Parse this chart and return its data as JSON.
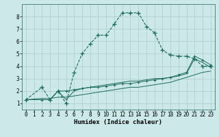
{
  "xlabel": "Humidex (Indice chaleur)",
  "bg_color": "#cce8e8",
  "grid_color": "#aacccc",
  "line_color": "#1a6b5a",
  "xlim": [
    -0.5,
    23.5
  ],
  "ylim": [
    0.5,
    9.0
  ],
  "xticks": [
    0,
    1,
    2,
    3,
    4,
    5,
    6,
    7,
    8,
    9,
    10,
    11,
    12,
    13,
    14,
    15,
    16,
    17,
    18,
    19,
    20,
    21,
    22,
    23
  ],
  "yticks": [
    1,
    2,
    3,
    4,
    5,
    6,
    7,
    8
  ],
  "line1_x": [
    0,
    2,
    3,
    4,
    5,
    6,
    7,
    8,
    9,
    10,
    11,
    12,
    13,
    14,
    15,
    16,
    17,
    18,
    19,
    20,
    21,
    22,
    23
  ],
  "line1_y": [
    1.3,
    2.3,
    1.3,
    2.0,
    1.0,
    3.5,
    5.0,
    5.8,
    6.5,
    6.5,
    7.4,
    8.3,
    8.3,
    8.3,
    7.2,
    6.7,
    5.3,
    4.9,
    4.8,
    4.8,
    4.6,
    4.0,
    4.0
  ],
  "line2_x": [
    0,
    2,
    3,
    4,
    5,
    6,
    7,
    8,
    9,
    10,
    11,
    12,
    13,
    14,
    15,
    16,
    17,
    18,
    19,
    20,
    21,
    22,
    23
  ],
  "line2_y": [
    1.3,
    1.3,
    1.3,
    2.0,
    2.0,
    2.1,
    2.2,
    2.3,
    2.3,
    2.4,
    2.5,
    2.6,
    2.6,
    2.7,
    2.8,
    2.9,
    3.0,
    3.1,
    3.3,
    3.5,
    4.8,
    4.5,
    4.1
  ],
  "line3_x": [
    0,
    2,
    3,
    4,
    5,
    6,
    7,
    8,
    9,
    10,
    11,
    12,
    13,
    14,
    15,
    16,
    17,
    18,
    19,
    20,
    21,
    22,
    23
  ],
  "line3_y": [
    1.3,
    1.3,
    1.3,
    2.0,
    1.3,
    2.0,
    2.2,
    2.3,
    2.4,
    2.5,
    2.6,
    2.7,
    2.8,
    2.8,
    2.9,
    3.0,
    3.0,
    3.1,
    3.2,
    3.4,
    4.6,
    4.3,
    3.9
  ],
  "line4_x": [
    0,
    2,
    3,
    4,
    5,
    6,
    7,
    8,
    9,
    10,
    11,
    12,
    13,
    14,
    15,
    16,
    17,
    18,
    19,
    20,
    21,
    22,
    23
  ],
  "line4_y": [
    1.3,
    1.4,
    1.4,
    1.5,
    1.5,
    1.6,
    1.7,
    1.8,
    1.9,
    2.0,
    2.1,
    2.2,
    2.3,
    2.3,
    2.4,
    2.5,
    2.6,
    2.7,
    2.9,
    3.1,
    3.3,
    3.5,
    3.6
  ]
}
